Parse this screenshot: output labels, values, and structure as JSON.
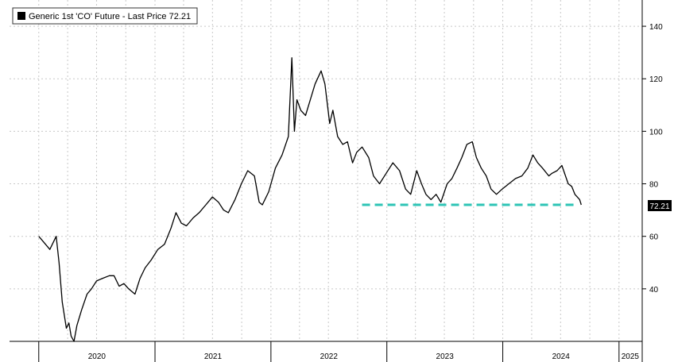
{
  "legend": {
    "label": "Generic 1st 'CO' Future - Last Price 72.21"
  },
  "last_price_tag": "72.21",
  "colors": {
    "line": "#000000",
    "support": "#2ec4b6",
    "grid": "#c8c8c8",
    "tag_bg": "#000000",
    "tag_text": "#ffffff"
  },
  "chart_data": {
    "type": "line",
    "title": "",
    "series": [
      {
        "name": "Generic 1st 'CO' Future - Last Price",
        "x": [
          "2020-01-01",
          "2020-01-15",
          "2020-02-05",
          "2020-02-25",
          "2020-03-05",
          "2020-03-15",
          "2020-03-28",
          "2020-04-05",
          "2020-04-12",
          "2020-04-21",
          "2020-04-30",
          "2020-05-15",
          "2020-06-01",
          "2020-06-15",
          "2020-07-01",
          "2020-07-20",
          "2020-08-10",
          "2020-08-25",
          "2020-09-10",
          "2020-09-25",
          "2020-10-10",
          "2020-10-30",
          "2020-11-15",
          "2020-12-01",
          "2020-12-20",
          "2021-01-10",
          "2021-01-31",
          "2021-02-20",
          "2021-03-08",
          "2021-03-25",
          "2021-04-10",
          "2021-05-01",
          "2021-05-20",
          "2021-06-10",
          "2021-07-01",
          "2021-07-20",
          "2021-08-05",
          "2021-08-20",
          "2021-09-10",
          "2021-09-30",
          "2021-10-20",
          "2021-11-10",
          "2021-11-25",
          "2021-12-05",
          "2021-12-25",
          "2022-01-15",
          "2022-02-05",
          "2022-02-25",
          "2022-03-08",
          "2022-03-16",
          "2022-03-24",
          "2022-04-05",
          "2022-04-20",
          "2022-05-05",
          "2022-05-20",
          "2022-06-08",
          "2022-06-20",
          "2022-07-05",
          "2022-07-15",
          "2022-07-30",
          "2022-08-15",
          "2022-08-30",
          "2022-09-15",
          "2022-09-28",
          "2022-10-15",
          "2022-11-05",
          "2022-11-20",
          "2022-12-09",
          "2022-12-30",
          "2023-01-20",
          "2023-02-10",
          "2023-03-01",
          "2023-03-17",
          "2023-04-05",
          "2023-04-20",
          "2023-05-04",
          "2023-05-20",
          "2023-06-05",
          "2023-06-20",
          "2023-07-10",
          "2023-07-25",
          "2023-08-10",
          "2023-08-25",
          "2023-09-10",
          "2023-09-27",
          "2023-10-10",
          "2023-10-25",
          "2023-11-10",
          "2023-11-25",
          "2023-12-12",
          "2023-12-30",
          "2024-01-20",
          "2024-02-10",
          "2024-03-01",
          "2024-03-20",
          "2024-04-05",
          "2024-04-20",
          "2024-05-05",
          "2024-05-25",
          "2024-06-04",
          "2024-06-20",
          "2024-07-05",
          "2024-07-25",
          "2024-08-05",
          "2024-08-15",
          "2024-08-30",
          "2024-09-04"
        ],
        "y": [
          60,
          58,
          55,
          60,
          50,
          35,
          25,
          27,
          22,
          20,
          26,
          32,
          38,
          40,
          43,
          44,
          45,
          45,
          41,
          42,
          40,
          38,
          44,
          48,
          51,
          55,
          57,
          63,
          69,
          65,
          64,
          67,
          69,
          72,
          75,
          73,
          70,
          69,
          74,
          80,
          85,
          83,
          73,
          72,
          77,
          86,
          91,
          98,
          128,
          100,
          112,
          108,
          106,
          112,
          118,
          123,
          118,
          103,
          108,
          98,
          95,
          96,
          88,
          92,
          94,
          90,
          83,
          80,
          84,
          88,
          85,
          78,
          76,
          85,
          80,
          76,
          74,
          76,
          73,
          80,
          82,
          86,
          90,
          95,
          96,
          90,
          86,
          83,
          78,
          76,
          78,
          80,
          82,
          83,
          86,
          91,
          88,
          86,
          83,
          84,
          85,
          87,
          80,
          79,
          76,
          74,
          72
        ]
      }
    ],
    "xlabel": "",
    "ylabel": "",
    "x_tick_labels": [
      "2020",
      "2021",
      "2022",
      "2023",
      "2024",
      "2025"
    ],
    "y_tick_labels": [
      "40",
      "60",
      "80",
      "100",
      "120",
      "140"
    ],
    "xlim": [
      "2019-10-01",
      "2025-03-15"
    ],
    "ylim": [
      20,
      150
    ],
    "annotations": [
      {
        "type": "dashed-horizontal-line",
        "value": 72,
        "x_start": "2022-10-15",
        "x_end": "2024-08-25"
      }
    ],
    "legend_position": "top-left",
    "y_axis_side": "right",
    "grid": true
  }
}
